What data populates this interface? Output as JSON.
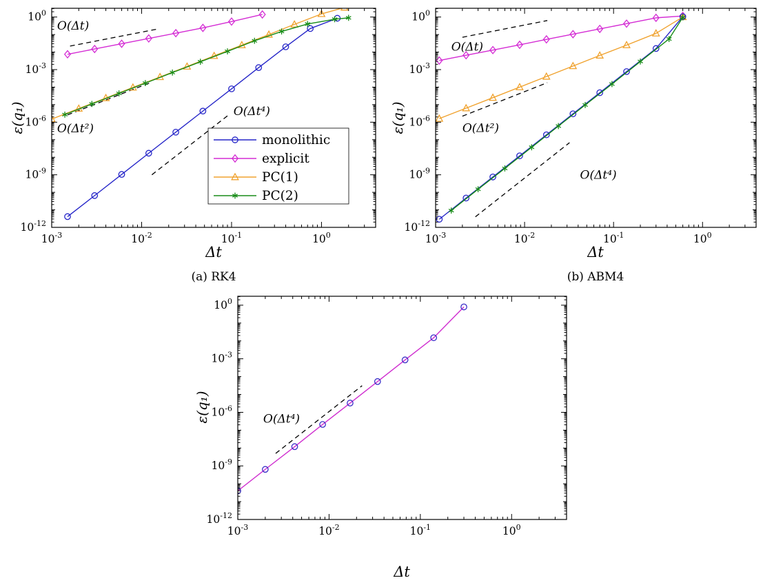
{
  "figure": {
    "background": "#ffffff",
    "text_color": "#000000"
  },
  "chart_data": [
    {
      "id": "a",
      "type": "line",
      "caption": "(a) RK4",
      "xlabel": "Δt",
      "ylabel": "ε(q₁)",
      "xscale": "log",
      "yscale": "log",
      "xlim": [
        0.001,
        4
      ],
      "ylim": [
        1e-12,
        3.16
      ],
      "x_tick_exponents": [
        -3,
        -2,
        -1,
        0
      ],
      "y_tick_exponents": [
        0,
        -3,
        -6,
        -9,
        -12
      ],
      "tick_format": "power-of-10",
      "grid": false,
      "legend": {
        "show": true,
        "position": "center-right"
      },
      "series": [
        {
          "name": "monolithic",
          "line_color": "#2525c8",
          "marker": "circle",
          "x": [
            0.0015,
            0.003,
            0.006,
            0.012,
            0.024,
            0.048,
            0.1,
            0.2,
            0.4,
            0.75,
            1.5
          ],
          "y": [
            4.1e-12,
            6.5e-11,
            1.05e-09,
            1.7e-08,
            2.7e-07,
            4.3e-06,
            8e-05,
            0.0013,
            0.02,
            0.22,
            0.85
          ]
        },
        {
          "name": "explicit",
          "line_color": "#d42bd4",
          "marker": "diamond",
          "x": [
            0.0015,
            0.003,
            0.006,
            0.012,
            0.024,
            0.048,
            0.1,
            0.22
          ],
          "y": [
            0.0075,
            0.015,
            0.03,
            0.06,
            0.12,
            0.24,
            0.55,
            1.4
          ]
        },
        {
          "name": "PC(1)",
          "line_color": "#f0a22e",
          "marker": "triangle",
          "x": [
            0.001,
            0.002,
            0.004,
            0.008,
            0.016,
            0.032,
            0.064,
            0.13,
            0.26,
            0.5,
            1.0,
            1.8
          ],
          "y": [
            1.5e-06,
            6e-06,
            2.4e-05,
            9.6e-05,
            0.00038,
            0.0015,
            0.0061,
            0.025,
            0.1,
            0.38,
            1.5,
            3.5
          ]
        },
        {
          "name": "PC(2)",
          "line_color": "#188c18",
          "marker": "star",
          "x": [
            0.0014,
            0.0028,
            0.0056,
            0.011,
            0.022,
            0.045,
            0.09,
            0.18,
            0.36,
            0.7,
            1.4,
            2.0
          ],
          "y": [
            2.7e-06,
            1.1e-05,
            4.4e-05,
            0.00017,
            0.00068,
            0.0028,
            0.011,
            0.044,
            0.15,
            0.4,
            0.75,
            0.9
          ]
        }
      ],
      "guides": [
        {
          "label": "O(Δt)",
          "x": [
            0.0016,
            0.0155
          ],
          "y": [
            0.022,
            0.213
          ],
          "label_at": [
            0.00115,
            0.19
          ]
        },
        {
          "label": "O(Δt²)",
          "x": [
            0.0015,
            0.013
          ],
          "y": [
            2.6e-06,
            0.000195
          ],
          "label_at": [
            0.00115,
            2.6e-07
          ]
        },
        {
          "label": "O(Δt⁴)",
          "x": [
            0.013,
            0.09
          ],
          "y": [
            1e-09,
            2.3e-06
          ],
          "label_at": [
            0.105,
            2.6e-06
          ]
        }
      ]
    },
    {
      "id": "b",
      "type": "line",
      "caption": "(b) ABM4",
      "xlabel": "Δt",
      "ylabel": "ε(q₁)",
      "xscale": "log",
      "yscale": "log",
      "xlim": [
        0.001,
        4
      ],
      "ylim": [
        1e-12,
        3.16
      ],
      "x_tick_exponents": [
        -3,
        -2,
        -1,
        0
      ],
      "y_tick_exponents": [
        0,
        -3,
        -6,
        -9,
        -12
      ],
      "tick_format": "power-of-10",
      "grid": false,
      "legend": {
        "show": false
      },
      "series": [
        {
          "name": "explicit",
          "line_color": "#d42bd4",
          "marker": "diamond",
          "x": [
            0.0011,
            0.0022,
            0.0044,
            0.0088,
            0.0176,
            0.035,
            0.07,
            0.14,
            0.3,
            0.6
          ],
          "y": [
            0.0033,
            0.0066,
            0.013,
            0.026,
            0.053,
            0.105,
            0.21,
            0.42,
            0.9,
            1.15
          ]
        },
        {
          "name": "PC(1)",
          "line_color": "#f0a22e",
          "marker": "triangle",
          "x": [
            0.0011,
            0.0022,
            0.0044,
            0.0088,
            0.0176,
            0.035,
            0.07,
            0.14,
            0.3,
            0.6
          ],
          "y": [
            1.6e-06,
            6.3e-06,
            2.5e-05,
            0.0001,
            0.0004,
            0.0016,
            0.0064,
            0.025,
            0.117,
            1.0
          ]
        },
        {
          "name": "monolithic",
          "line_color": "#2525c8",
          "marker": "circle",
          "x": [
            0.0011,
            0.0022,
            0.0044,
            0.0088,
            0.0176,
            0.035,
            0.07,
            0.14,
            0.3,
            0.6
          ],
          "y": [
            2.9e-12,
            4.7e-11,
            7.5e-10,
            1.2e-08,
            1.9e-07,
            3e-06,
            4.8e-05,
            0.00077,
            0.016,
            1.05
          ]
        },
        {
          "name": "PC(2)",
          "line_color": "#188c18",
          "marker": "star",
          "x": [
            0.0015,
            0.003,
            0.006,
            0.012,
            0.024,
            0.048,
            0.096,
            0.2,
            0.42,
            0.6
          ],
          "y": [
            9.1e-12,
            1.5e-10,
            2.3e-09,
            3.7e-08,
            6e-07,
            9.6e-06,
            0.00015,
            0.0029,
            0.056,
            0.95
          ]
        }
      ],
      "guides": [
        {
          "label": "O(Δt)",
          "x": [
            0.002,
            0.018
          ],
          "y": [
            0.07,
            0.63
          ],
          "label_at": [
            0.0015,
            0.012
          ]
        },
        {
          "label": "O(Δt²)",
          "x": [
            0.002,
            0.018
          ],
          "y": [
            2.2e-06,
            0.00018
          ],
          "label_at": [
            0.002,
            2.8e-07
          ]
        },
        {
          "label": "O(Δt⁴)",
          "x": [
            0.0028,
            0.032
          ],
          "y": [
            4e-12,
            6.8e-08
          ],
          "label_at": [
            0.042,
            6e-10
          ]
        }
      ]
    },
    {
      "id": "c",
      "type": "line",
      "xlabel": "Δt",
      "ylabel": "ε(q₁)",
      "xscale": "log",
      "yscale": "log",
      "xlim": [
        0.001,
        4
      ],
      "ylim": [
        1e-12,
        3.16
      ],
      "x_tick_exponents": [
        -3,
        -2,
        -1,
        0
      ],
      "y_tick_exponents": [
        0,
        -3,
        -6,
        -9,
        -12
      ],
      "tick_format": "power-of-10",
      "grid": false,
      "legend": {
        "show": false
      },
      "series": [
        {
          "line_color": "#cf2ccf",
          "marker": "circle",
          "marker_color": "#3a2ec8",
          "x": [
            0.001,
            0.002,
            0.0042,
            0.0085,
            0.017,
            0.034,
            0.068,
            0.14,
            0.3
          ],
          "y": [
            4e-11,
            6.4e-10,
            1.2e-08,
            2.1e-07,
            3.3e-06,
            5.3e-05,
            0.00086,
            0.015,
            0.8
          ]
        }
      ],
      "guides": [
        {
          "label": "O(Δt⁴)",
          "x": [
            0.0026,
            0.023
          ],
          "y": [
            5e-09,
            3.1e-05
          ],
          "label_at": [
            0.0019,
            2.6e-07
          ]
        }
      ]
    }
  ]
}
